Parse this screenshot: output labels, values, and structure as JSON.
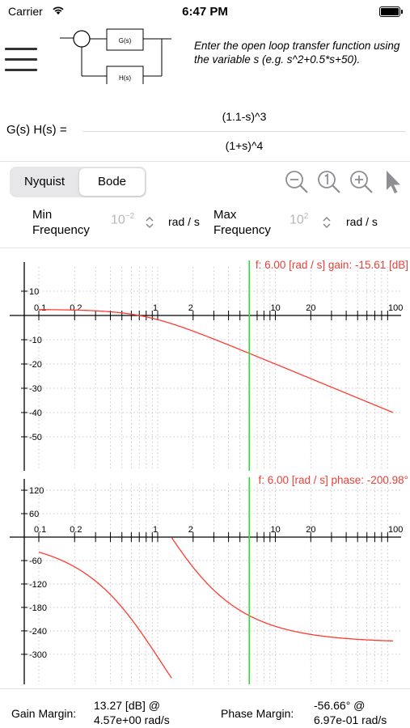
{
  "status": {
    "carrier": "Carrier",
    "time": "6:47 PM"
  },
  "diagram": {
    "g_label": "G(s)",
    "h_label": "H(s)"
  },
  "instructions": "Enter the open loop transfer function using the variable s (e.g. s^2+0.5*s+50).",
  "transfer_function": {
    "label": "G(s) H(s) =",
    "numerator": "(1.1-s)^3",
    "denominator": "(1+s)^4"
  },
  "tabs": [
    {
      "label": "Nyquist",
      "selected": false
    },
    {
      "label": "Bode",
      "selected": true
    }
  ],
  "toolbar": [
    "zoom-out-icon",
    "zoom-reset-icon",
    "zoom-in-icon",
    "pointer-icon"
  ],
  "frequency": {
    "min_label_1": "Min",
    "min_label_2": "Frequency",
    "min_base": "10",
    "min_exp": "−2",
    "max_label_1": "Max",
    "max_label_2": "Frequency",
    "max_base": "10",
    "max_exp": "2",
    "unit": "rad / s"
  },
  "gain_plot": {
    "readout": "f: 6.00 [rad / s] gain: -15.61 [dB]",
    "x_ticks": [
      "0.1",
      "0.2",
      "1",
      "2",
      "10",
      "20",
      "100"
    ],
    "y_ticks": [
      "10",
      "-10",
      "-20",
      "-30",
      "-40",
      "-50"
    ],
    "cursor_freq": 6.0
  },
  "phase_plot": {
    "readout": "f: 6.00 [rad / s] phase: -200.98°",
    "x_ticks": [
      "0.1",
      "0.2",
      "1",
      "2",
      "10",
      "20",
      "100"
    ],
    "y_ticks": [
      "120",
      "60",
      "-60",
      "-120",
      "-180",
      "-240",
      "-300"
    ],
    "cursor_freq": 6.0
  },
  "colors": {
    "curve": "#ff3b30",
    "cursor": "#33dd33",
    "readout": "#e8403a"
  },
  "margins": {
    "gain_label": "Gain Margin:",
    "gain_value_1": "13.27 [dB] @",
    "gain_value_2": "4.57e+00 rad/s",
    "phase_label": "Phase Margin:",
    "phase_value_1": "-56.66° @",
    "phase_value_2": "6.97e-01 rad/s"
  }
}
